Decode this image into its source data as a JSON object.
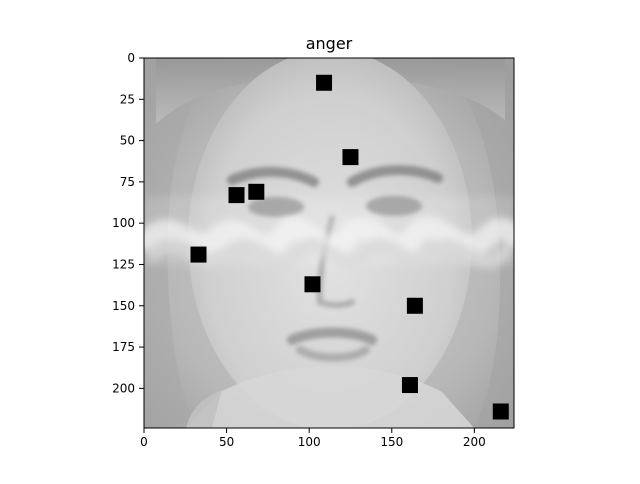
{
  "figure": {
    "title": "anger"
  },
  "image_axes": {
    "x_ticks": [
      "0",
      "50",
      "100",
      "150",
      "200"
    ],
    "y_ticks": [
      "0",
      "25",
      "50",
      "75",
      "100",
      "125",
      "150",
      "175",
      "200"
    ],
    "x_tick_values": [
      0,
      50,
      100,
      150,
      200
    ],
    "y_tick_values": [
      0,
      25,
      50,
      75,
      100,
      125,
      150,
      175,
      200
    ],
    "xlim": [
      0,
      224
    ],
    "ylim": [
      224,
      0
    ]
  },
  "overlay": {
    "marker_color": "#000000",
    "markers": [
      {
        "x": 109,
        "y": 15
      },
      {
        "x": 125,
        "y": 60
      },
      {
        "x": 56,
        "y": 83
      },
      {
        "x": 68,
        "y": 81
      },
      {
        "x": 33,
        "y": 119
      },
      {
        "x": 102,
        "y": 137
      },
      {
        "x": 164,
        "y": 150
      },
      {
        "x": 161,
        "y": 198
      },
      {
        "x": 216,
        "y": 214
      }
    ]
  },
  "image": {
    "content": "grayscale close-up face photo with a text watermark across the eyes"
  }
}
